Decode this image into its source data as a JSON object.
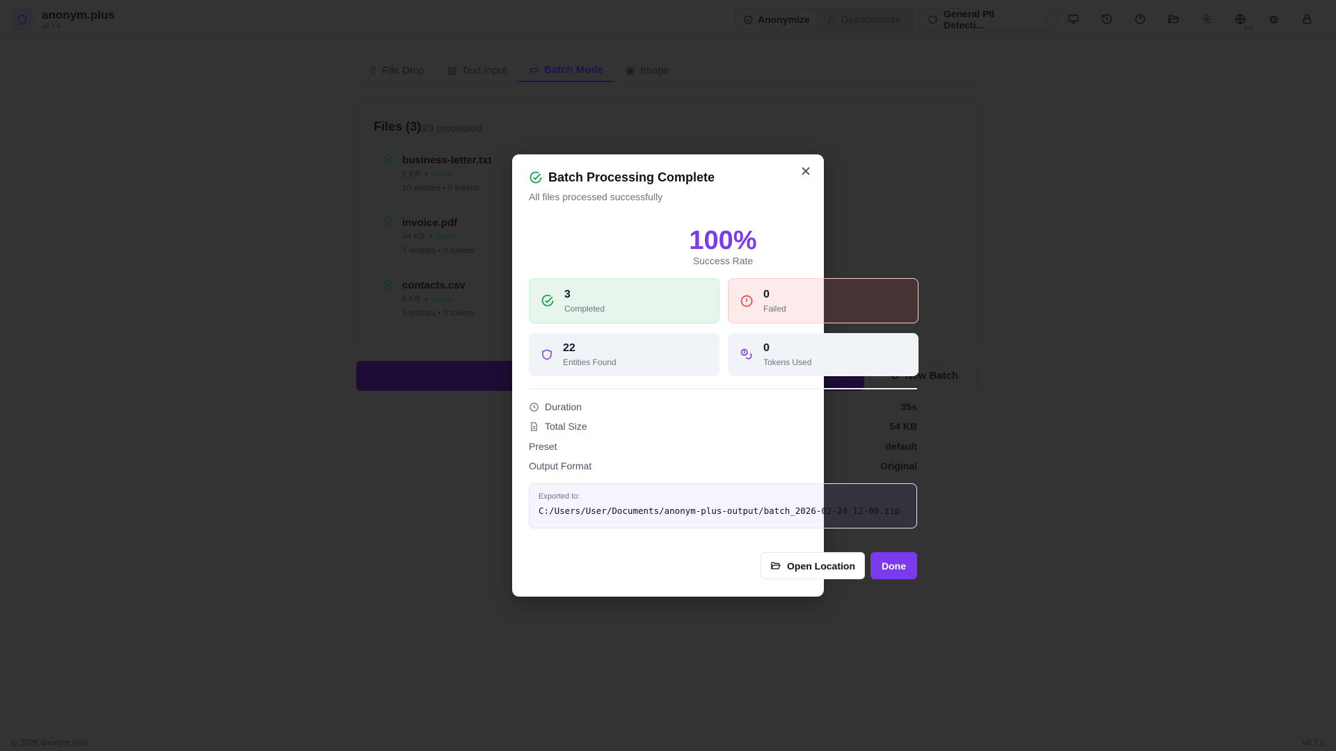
{
  "app": {
    "name": "anonym.plus",
    "version": "v8.7.6",
    "logo_icon": "shield-icon"
  },
  "header": {
    "modes": [
      {
        "label": "Anonymize",
        "icon": "shield-check-icon",
        "active": true
      },
      {
        "label": "Deanonymize",
        "icon": "unlock-icon",
        "active": false
      }
    ],
    "preset": "General PII Detecti...",
    "language": "EN",
    "icons": [
      "monitor-icon",
      "history-icon",
      "help-icon",
      "folder-icon",
      "gear-icon",
      "globe-icon",
      "bug-icon",
      "lock-icon"
    ]
  },
  "tabs": [
    {
      "label": "File Drop"
    },
    {
      "label": "Text Input"
    },
    {
      "label": "Batch Mode",
      "active": true
    },
    {
      "label": "Image"
    }
  ],
  "files": {
    "title": "Files (3)",
    "processed": "3/3 processed",
    "items": [
      {
        "name": "business-letter.txt",
        "size": "2 KB",
        "status": "Done",
        "stats": "10 entities • 0 tokens"
      },
      {
        "name": "invoice.pdf",
        "size": "44 KB",
        "status": "Done",
        "stats": "7 entities • 0 tokens"
      },
      {
        "name": "contacts.csv",
        "size": "8 KB",
        "status": "Done",
        "stats": "5 entities • 0 tokens"
      }
    ],
    "new_batch": "New Batch"
  },
  "modal": {
    "title": "Batch Processing Complete",
    "subtitle": "All files processed successfully",
    "success_rate": "100%",
    "success_label": "Success Rate",
    "stats": [
      {
        "value": "3",
        "label": "Completed"
      },
      {
        "value": "0",
        "label": "Failed"
      },
      {
        "value": "22",
        "label": "Entities Found"
      },
      {
        "value": "0",
        "label": "Tokens Used"
      }
    ],
    "details": [
      {
        "label": "Duration",
        "value": "35s"
      },
      {
        "label": "Total Size",
        "value": "54 KB"
      },
      {
        "label": "Preset",
        "value": "default"
      },
      {
        "label": "Output Format",
        "value": "Original"
      }
    ],
    "export_label": "Exported to:",
    "export_path": "C:/Users/User/Documents/anonym-plus-output/batch_2026-02-24_12-00.zip",
    "open_location": "Open Location",
    "done": "Done"
  },
  "footer": {
    "copyright": "© 2026 anonym.plus",
    "version": "v8.7.6"
  },
  "colors": {
    "accent": "#7c3aed",
    "success": "#16a34a",
    "danger": "#ef4444"
  }
}
